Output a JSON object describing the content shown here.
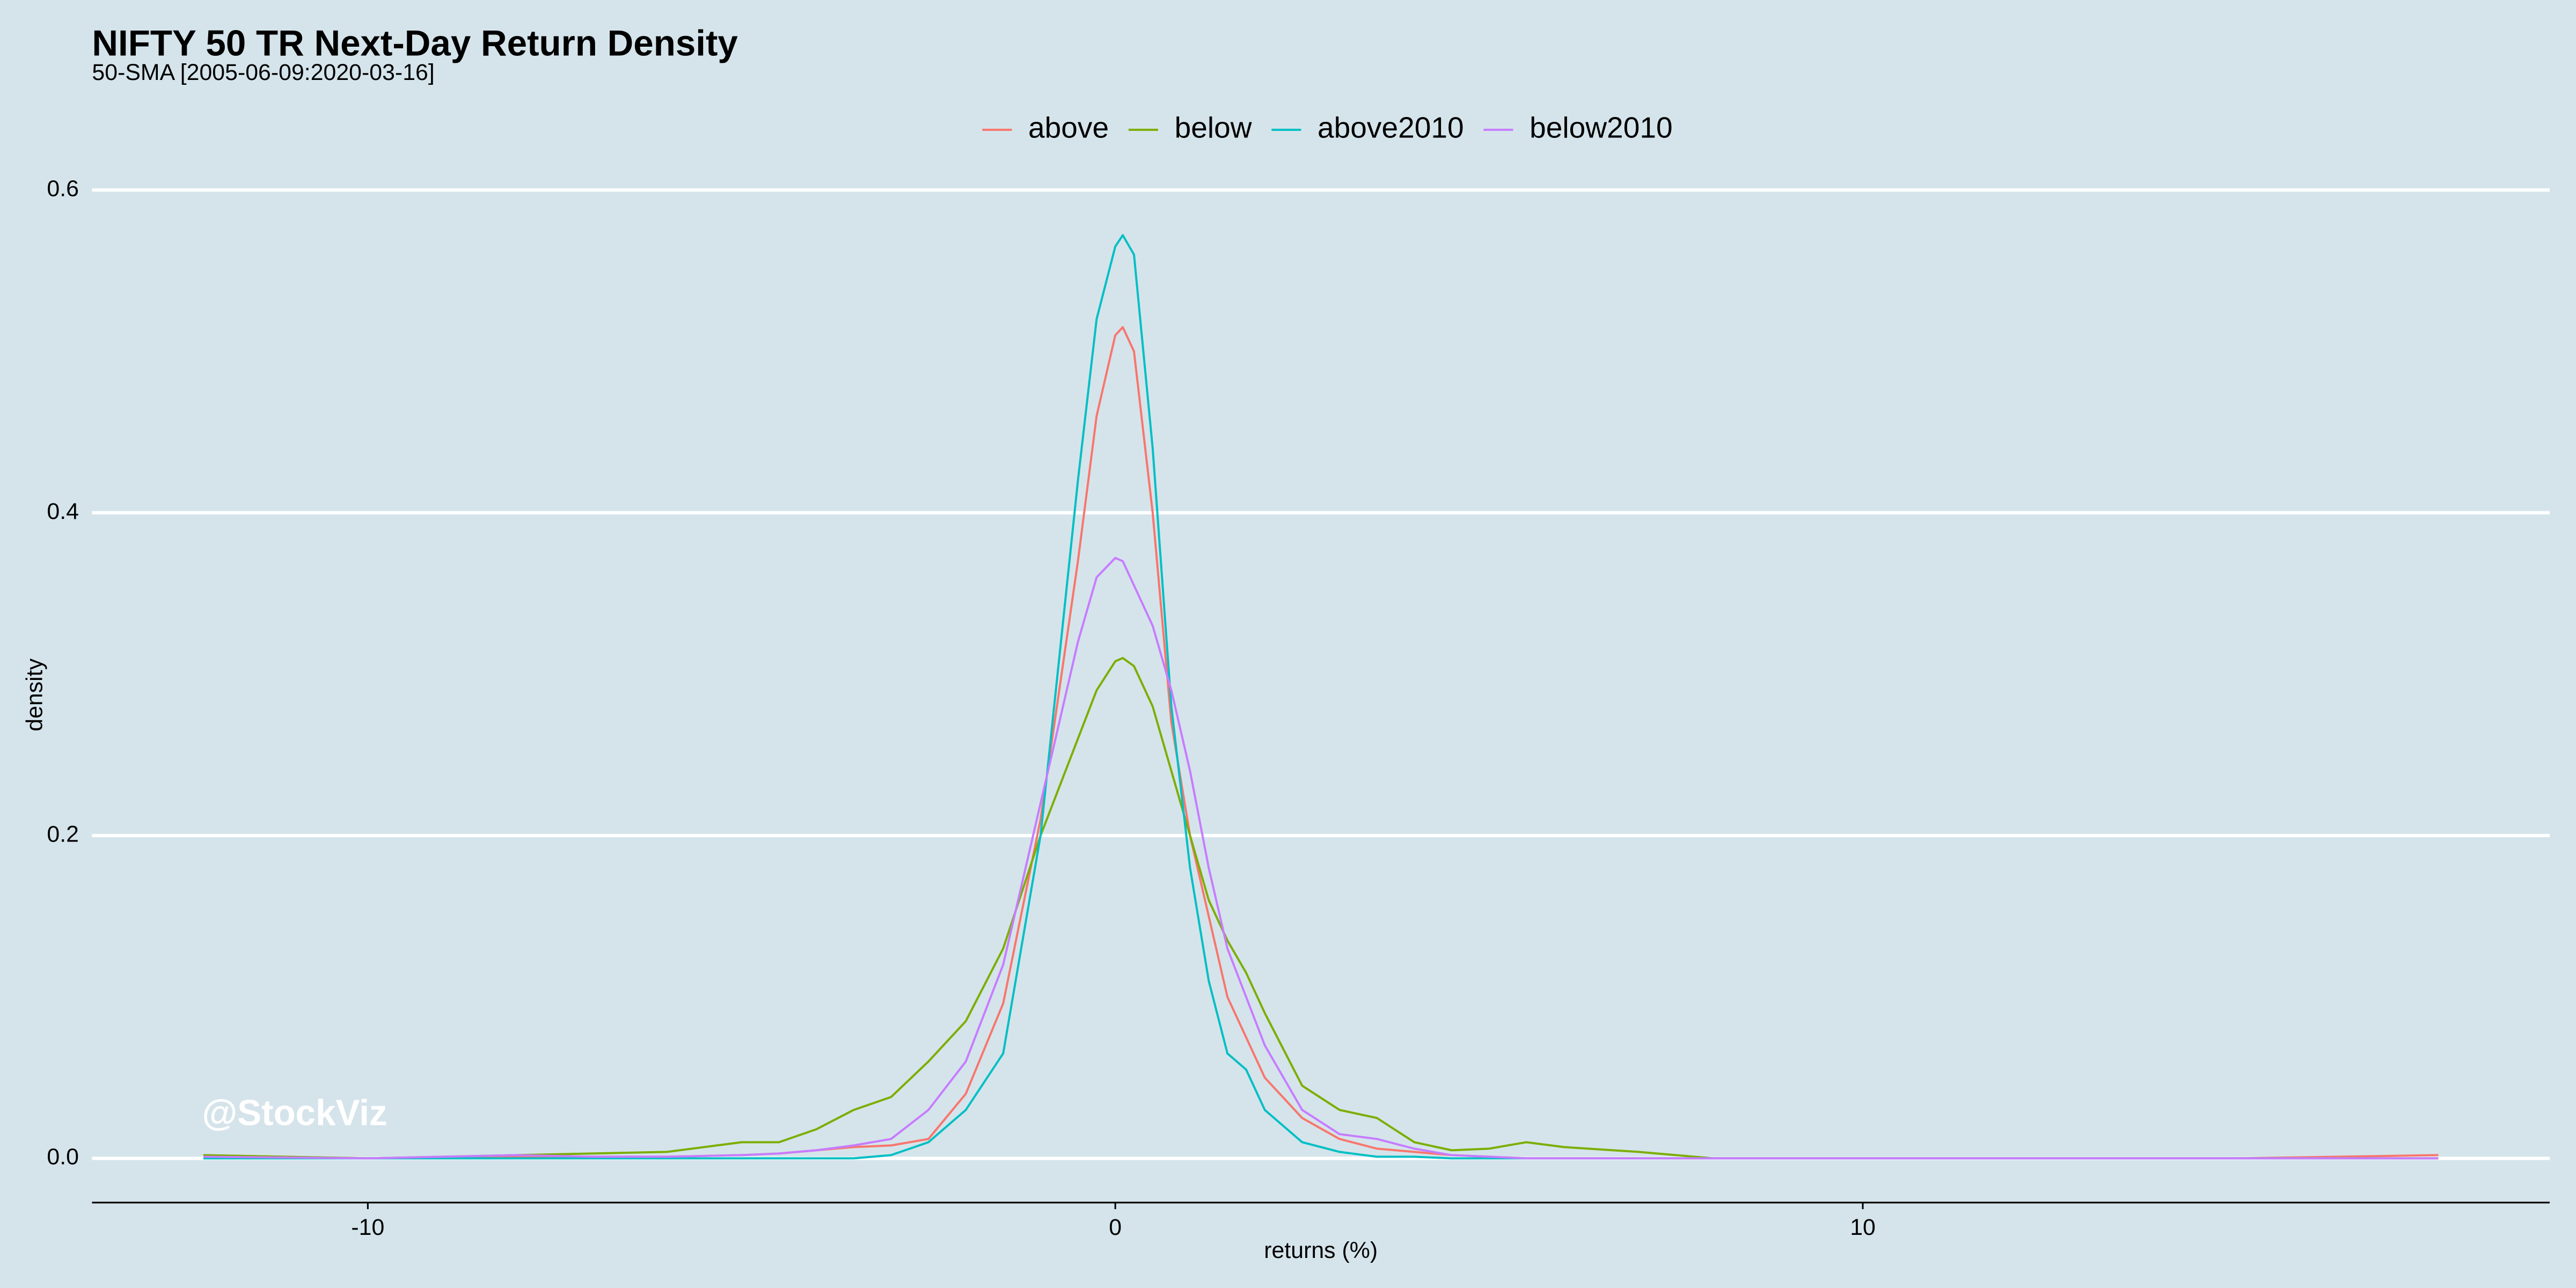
{
  "chart_data": {
    "type": "line",
    "title": "NIFTY 50 TR Next-Day Return Density",
    "subtitle": "50-SMA [2005-06-09:2020-03-16]",
    "xlabel": "returns (%)",
    "ylabel": "density",
    "annotation": "@StockViz",
    "legend": "top",
    "grid": true,
    "xlim": [
      -13.69,
      19.19
    ],
    "ylim": [
      -0.0274,
      0.62
    ],
    "xticks": [
      -10,
      0,
      10
    ],
    "yticks": [
      {
        "value": 0,
        "label": "0.0"
      },
      0.2,
      0.4,
      0.6
    ],
    "x": [
      -12.2,
      -10,
      -8,
      -7,
      -6,
      -5,
      -4.5,
      -4,
      -3.5,
      -3,
      -2.5,
      -2,
      -1.5,
      -1,
      -0.5,
      -0.25,
      0,
      0.1,
      0.25,
      0.5,
      0.75,
      1,
      1.25,
      1.5,
      1.75,
      2,
      2.5,
      3,
      3.5,
      4,
      4.5,
      5,
      5.5,
      6,
      7,
      8,
      10,
      15,
      17.7
    ],
    "series": [
      {
        "name": "above",
        "color": "#F8766D",
        "values": [
          0.002,
          0,
          0.001,
          0.001,
          0.001,
          0.002,
          0.003,
          0.005,
          0.007,
          0.008,
          0.012,
          0.04,
          0.096,
          0.21,
          0.37,
          0.46,
          0.51,
          0.515,
          0.5,
          0.4,
          0.27,
          0.2,
          0.15,
          0.1,
          0.075,
          0.05,
          0.025,
          0.012,
          0.006,
          0.004,
          0.002,
          0.001,
          0,
          0,
          0,
          0,
          0,
          0,
          0.002
        ]
      },
      {
        "name": "below",
        "color": "#7CAE00",
        "values": [
          0.002,
          0,
          0.002,
          0.003,
          0.004,
          0.01,
          0.01,
          0.018,
          0.03,
          0.038,
          0.06,
          0.085,
          0.13,
          0.2,
          0.26,
          0.29,
          0.308,
          0.31,
          0.305,
          0.28,
          0.24,
          0.2,
          0.16,
          0.135,
          0.115,
          0.09,
          0.045,
          0.03,
          0.025,
          0.01,
          0.005,
          0.006,
          0.01,
          0.007,
          0.004,
          0,
          0,
          0,
          0
        ]
      },
      {
        "name": "above2010",
        "color": "#00BFC4",
        "values": [
          0,
          0,
          0,
          0,
          0,
          0,
          0,
          0,
          0,
          0.002,
          0.01,
          0.03,
          0.065,
          0.2,
          0.42,
          0.52,
          0.565,
          0.572,
          0.56,
          0.44,
          0.28,
          0.18,
          0.11,
          0.065,
          0.055,
          0.03,
          0.01,
          0.004,
          0.001,
          0.001,
          0,
          0,
          0,
          0,
          0,
          0,
          0,
          0,
          0
        ]
      },
      {
        "name": "below2010",
        "color": "#C77CFF",
        "values": [
          0.001,
          0,
          0.002,
          0.001,
          0.001,
          0.002,
          0.003,
          0.005,
          0.008,
          0.012,
          0.03,
          0.06,
          0.12,
          0.22,
          0.32,
          0.36,
          0.372,
          0.37,
          0.355,
          0.33,
          0.29,
          0.24,
          0.18,
          0.13,
          0.1,
          0.07,
          0.03,
          0.015,
          0.012,
          0.006,
          0.002,
          0.001,
          0,
          0,
          0,
          0,
          0,
          0,
          0
        ]
      }
    ]
  }
}
